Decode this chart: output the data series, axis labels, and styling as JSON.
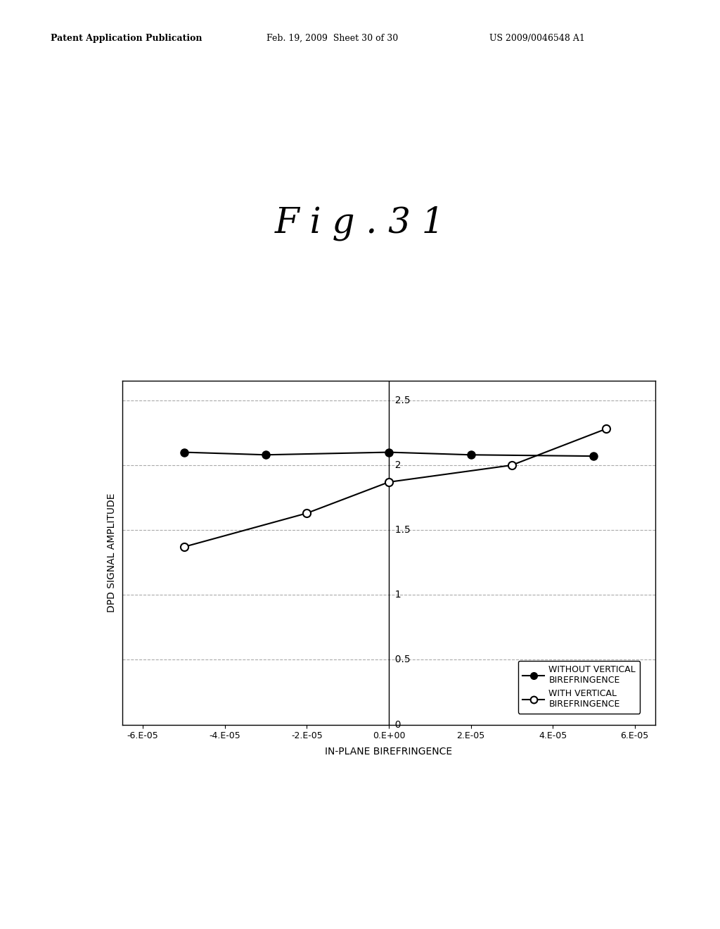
{
  "title": "F i g . 3 1",
  "patent_left": "Patent Application Publication",
  "patent_mid": "Feb. 19, 2009  Sheet 30 of 30",
  "patent_right": "US 2009/0046548 A1",
  "series1_label": "WITHOUT VERTICAL\nBIREFRINGENCE",
  "series2_label": "WITH VERTICAL\nBIREFRINGENCE",
  "series1_x": [
    -5e-05,
    -3e-05,
    0.0,
    2e-05,
    5e-05
  ],
  "series1_y": [
    2.1,
    2.08,
    2.1,
    2.08,
    2.07
  ],
  "series2_x": [
    -5e-05,
    -2e-05,
    0.0,
    3e-05,
    5.3e-05
  ],
  "series2_y": [
    1.37,
    1.63,
    1.87,
    2.0,
    2.28
  ],
  "xlabel": "IN-PLANE BIREFRINGENCE",
  "ylabel": "DPD SIGNAL AMPLITUDE",
  "xlim": [
    -6.5e-05,
    6.5e-05
  ],
  "ylim": [
    0,
    2.65
  ],
  "yticks": [
    0,
    0.5,
    1,
    1.5,
    2,
    2.5
  ],
  "xtick_vals": [
    -6e-05,
    -4e-05,
    -2e-05,
    0.0,
    2e-05,
    4e-05,
    6e-05
  ],
  "xtick_labels": [
    "-6.E-05",
    "-4.E-05",
    "-2.E-05",
    "0.E+00",
    "2.E-05",
    "4.E-05",
    "6.E-05"
  ],
  "background_color": "#ffffff",
  "line_color": "#000000",
  "grid_color": "#aaaaaa",
  "legend_fontsize": 9,
  "axis_fontsize": 10,
  "title_fontsize": 36,
  "header_fontsize": 9
}
